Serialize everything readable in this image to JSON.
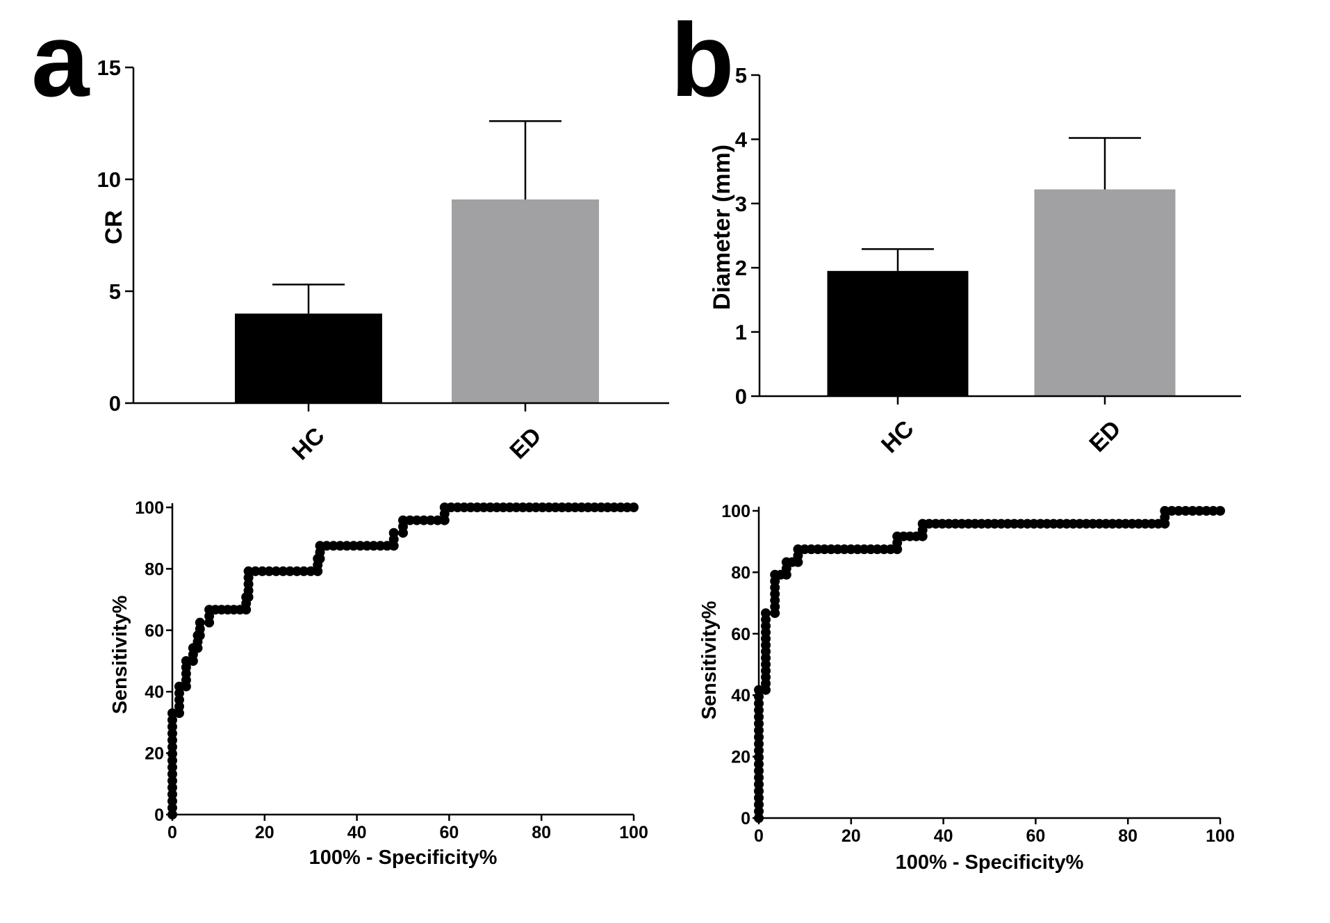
{
  "panels": {
    "a_label": "a",
    "b_label": "b"
  },
  "chart_data": [
    {
      "id": "bar_a",
      "type": "bar",
      "title": "",
      "xlabel": "",
      "ylabel": "CR",
      "categories": [
        "HC",
        "ED"
      ],
      "values": [
        4.0,
        9.1
      ],
      "error_upper": [
        5.3,
        12.6
      ],
      "colors": [
        "#000000",
        "#a1a1a4"
      ],
      "ylim": [
        0,
        15
      ],
      "yticks": [
        0,
        5,
        10,
        15
      ],
      "grid": false,
      "legend": "none"
    },
    {
      "id": "bar_b",
      "type": "bar",
      "title": "",
      "xlabel": "",
      "ylabel": "Diameter (mm)",
      "categories": [
        "HC",
        "ED"
      ],
      "values": [
        1.95,
        3.22
      ],
      "error_upper": [
        2.29,
        4.02
      ],
      "colors": [
        "#000000",
        "#a1a1a4"
      ],
      "ylim": [
        0,
        5
      ],
      "yticks": [
        0,
        1,
        2,
        3,
        4,
        5
      ],
      "grid": false,
      "legend": "none"
    },
    {
      "id": "roc_a",
      "type": "line",
      "title": "",
      "xlabel": "100% - Specificity%",
      "ylabel": "Sensitivity%",
      "xlim": [
        0,
        100
      ],
      "ylim": [
        0,
        100
      ],
      "xticks": [
        0,
        20,
        40,
        60,
        80,
        100
      ],
      "yticks": [
        0,
        20,
        40,
        60,
        80,
        100
      ],
      "grid": false,
      "legend": "none",
      "steps": [
        [
          0,
          0
        ],
        [
          0,
          33
        ],
        [
          1.5,
          33
        ],
        [
          1.5,
          41.7
        ],
        [
          3,
          41.7
        ],
        [
          3,
          50
        ],
        [
          4.5,
          50
        ],
        [
          4.5,
          54.2
        ],
        [
          5.5,
          54.2
        ],
        [
          5.5,
          58.3
        ],
        [
          6,
          58.3
        ],
        [
          6,
          62.5
        ],
        [
          8,
          62.5
        ],
        [
          8,
          66.7
        ],
        [
          16,
          66.7
        ],
        [
          16,
          70.8
        ],
        [
          16.5,
          70.8
        ],
        [
          16.5,
          79.2
        ],
        [
          31.5,
          79.2
        ],
        [
          31.5,
          83.3
        ],
        [
          32,
          83.3
        ],
        [
          32,
          87.5
        ],
        [
          48,
          87.5
        ],
        [
          48,
          91.7
        ],
        [
          50,
          91.7
        ],
        [
          50,
          95.8
        ],
        [
          59,
          95.8
        ],
        [
          59,
          100
        ],
        [
          100,
          100
        ]
      ]
    },
    {
      "id": "roc_b",
      "type": "line",
      "title": "",
      "xlabel": "100% - Specificity%",
      "ylabel": "Sensitivity%",
      "xlim": [
        0,
        100
      ],
      "ylim": [
        0,
        100
      ],
      "xticks": [
        0,
        20,
        40,
        60,
        80,
        100
      ],
      "yticks": [
        0,
        20,
        40,
        60,
        80,
        100
      ],
      "grid": false,
      "legend": "none",
      "steps": [
        [
          0,
          0
        ],
        [
          0,
          41.7
        ],
        [
          1.5,
          41.7
        ],
        [
          1.5,
          66.7
        ],
        [
          3.5,
          66.7
        ],
        [
          3.5,
          79.2
        ],
        [
          6,
          79.2
        ],
        [
          6,
          83.3
        ],
        [
          8.5,
          83.3
        ],
        [
          8.5,
          87.5
        ],
        [
          30,
          87.5
        ],
        [
          30,
          91.7
        ],
        [
          35.5,
          91.7
        ],
        [
          35.5,
          95.8
        ],
        [
          88,
          95.8
        ],
        [
          88,
          100
        ],
        [
          100,
          100
        ]
      ]
    }
  ]
}
